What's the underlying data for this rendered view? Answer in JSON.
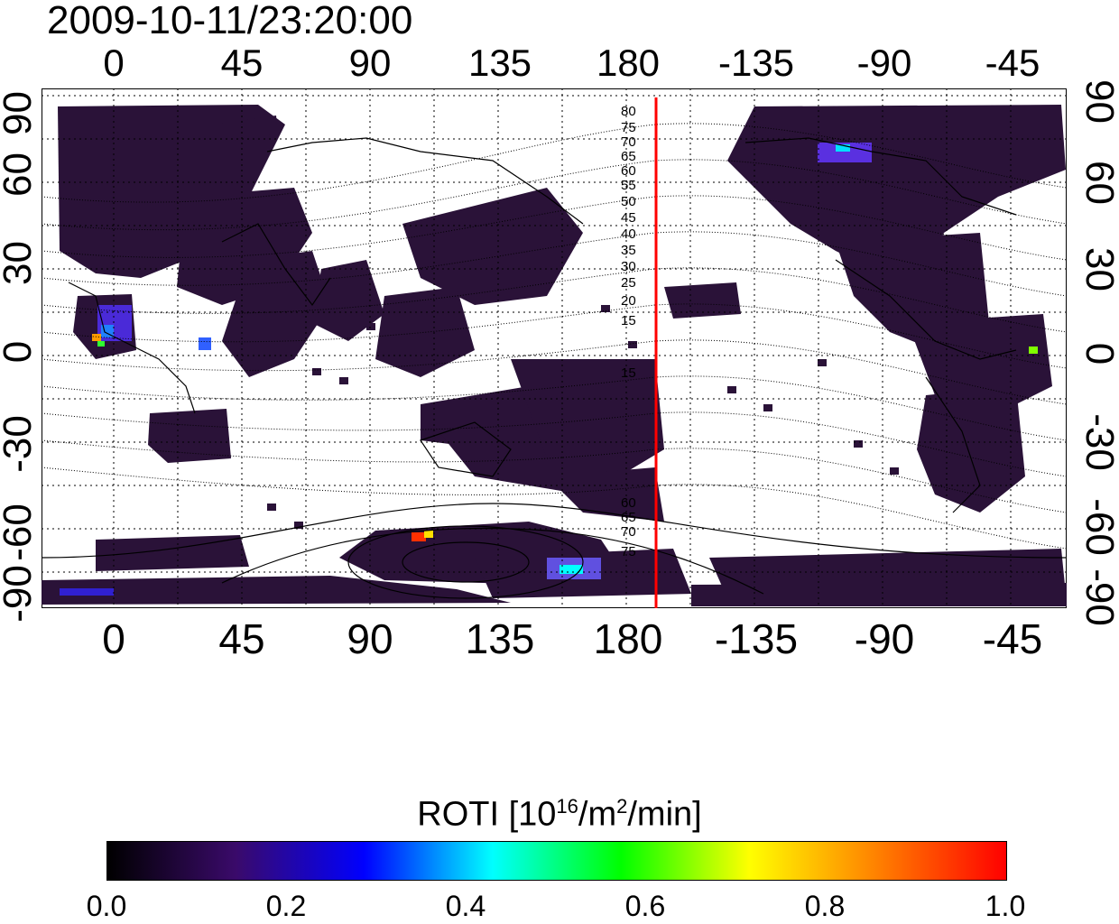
{
  "title": "2009-10-11/23:20:00",
  "top_axis_ticks": [
    "0",
    "45",
    "90",
    "135",
    "180",
    "-135",
    "-90",
    "-45"
  ],
  "bottom_axis_ticks": [
    "0",
    "45",
    "90",
    "135",
    "180",
    "-135",
    "-90",
    "-45"
  ],
  "left_axis_ticks": [
    "90",
    "60",
    "30",
    "0",
    "-30",
    "-60",
    "-90"
  ],
  "right_axis_ticks": [
    "90",
    "60",
    "30",
    "0",
    "-30",
    "-60",
    "-90"
  ],
  "contour_labels": [
    "80",
    "75",
    "70",
    "65",
    "60",
    "55",
    "50",
    "45",
    "40",
    "35",
    "30",
    "25",
    "20",
    "15",
    "15",
    "60",
    "65",
    "70",
    "75"
  ],
  "colorbar": {
    "label_prefix": "ROTI  [10",
    "label_sup1": "16",
    "label_mid": "/m",
    "label_sup2": "2",
    "label_suffix": "/min]",
    "ticks": [
      "0.0",
      "0.2",
      "0.4",
      "0.6",
      "0.8",
      "1.0"
    ],
    "min": 0.0,
    "max": 1.0,
    "colors": [
      "#000000",
      "#3a0a6a",
      "#0000ff",
      "#00ffff",
      "#00ff00",
      "#ffff00",
      "#ff8000",
      "#ff0000"
    ]
  },
  "colors": {
    "frame": "#000000",
    "grid": "#000000",
    "terminator": "#ff0000",
    "low_roti": "#2a1238"
  }
}
